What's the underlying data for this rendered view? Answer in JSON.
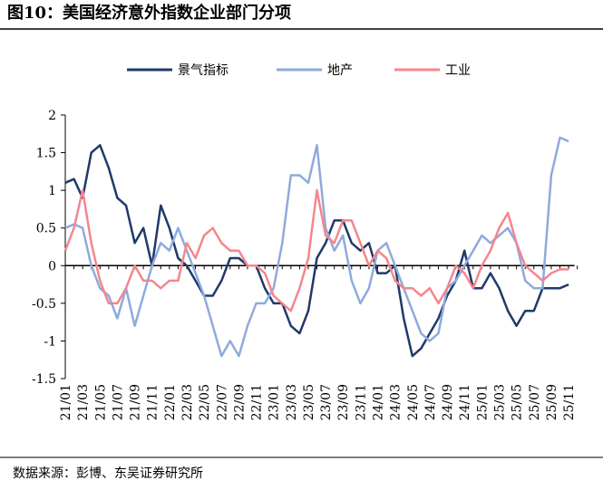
{
  "chart_data": {
    "type": "line",
    "title": "图10：美国经济意外指数企业部门分项",
    "source": "数据来源：彭博、东吴证券研究所",
    "categories": [
      "21/01",
      null,
      "21/03",
      null,
      "21/05",
      null,
      "21/07",
      null,
      "21/09",
      null,
      "21/11",
      null,
      "22/01",
      null,
      "22/03",
      null,
      "22/05",
      null,
      "22/07",
      null,
      "22/09",
      null,
      "22/11",
      null,
      "23/01",
      null,
      "23/03",
      null,
      "23/05",
      null,
      "23/07",
      null,
      "23/09",
      null,
      "23/11",
      null,
      "24/01",
      null,
      "24/03",
      null,
      "24/05",
      null,
      "24/07",
      null,
      "24/09",
      null,
      "24/11",
      null,
      "25/01",
      null,
      "25/03",
      null,
      "25/05",
      null,
      "25/07",
      null,
      "25/09",
      null,
      "25/11",
      null
    ],
    "series": [
      {
        "name": "景气指标",
        "color": "#1f3a6b",
        "values": [
          1.1,
          1.15,
          0.9,
          1.5,
          1.6,
          1.3,
          0.9,
          0.8,
          0.3,
          0.5,
          0.0,
          0.8,
          0.5,
          0.1,
          0.0,
          -0.2,
          -0.4,
          -0.4,
          -0.2,
          0.1,
          0.1,
          0.0,
          0.0,
          -0.3,
          -0.5,
          -0.5,
          -0.8,
          -0.9,
          -0.6,
          0.1,
          0.3,
          0.6,
          0.6,
          0.3,
          0.2,
          0.3,
          -0.1,
          -0.1,
          0.0,
          -0.7,
          -1.2,
          -1.1,
          -0.9,
          -0.7,
          -0.4,
          -0.2,
          0.2,
          -0.3,
          -0.3,
          -0.1,
          -0.3,
          -0.6,
          -0.8,
          -0.6,
          -0.6,
          -0.3,
          -0.3,
          -0.3,
          -0.25,
          null
        ]
      },
      {
        "name": "地产",
        "color": "#8faadc",
        "values": [
          0.5,
          0.55,
          0.5,
          0.0,
          -0.3,
          -0.4,
          -0.7,
          -0.3,
          -0.8,
          -0.4,
          0.0,
          0.3,
          0.2,
          0.5,
          0.2,
          -0.1,
          -0.4,
          -0.8,
          -1.2,
          -1.0,
          -1.2,
          -0.8,
          -0.5,
          -0.5,
          -0.3,
          0.3,
          1.2,
          1.2,
          1.1,
          1.6,
          0.5,
          0.2,
          0.4,
          -0.2,
          -0.5,
          -0.3,
          0.2,
          0.3,
          0.0,
          -0.3,
          -0.6,
          -0.9,
          -1.0,
          -0.9,
          -0.3,
          -0.2,
          0.0,
          0.2,
          0.4,
          0.3,
          0.4,
          0.5,
          0.3,
          -0.2,
          -0.3,
          -0.3,
          1.2,
          1.7,
          1.65,
          null
        ]
      },
      {
        "name": "工业",
        "color": "#f4868c",
        "values": [
          0.2,
          0.5,
          1.0,
          0.3,
          -0.2,
          -0.5,
          -0.5,
          -0.3,
          0.0,
          -0.2,
          -0.2,
          -0.3,
          -0.2,
          -0.2,
          0.3,
          0.1,
          0.4,
          0.5,
          0.3,
          0.2,
          0.2,
          0.0,
          0.0,
          -0.1,
          -0.4,
          -0.5,
          -0.6,
          -0.3,
          0.1,
          1.0,
          0.4,
          0.3,
          0.6,
          0.6,
          0.3,
          0.0,
          0.2,
          0.1,
          -0.2,
          -0.3,
          -0.3,
          -0.4,
          -0.3,
          -0.5,
          -0.3,
          0.0,
          -0.1,
          -0.3,
          0.0,
          0.2,
          0.5,
          0.7,
          0.3,
          0.0,
          -0.1,
          -0.2,
          -0.1,
          -0.05,
          -0.05,
          null
        ]
      }
    ],
    "ylim": [
      -1.5,
      2
    ],
    "yticks": [
      -1.5,
      -1,
      -0.5,
      0,
      0.5,
      1,
      1.5,
      2
    ],
    "legend": "top",
    "grid": false
  }
}
